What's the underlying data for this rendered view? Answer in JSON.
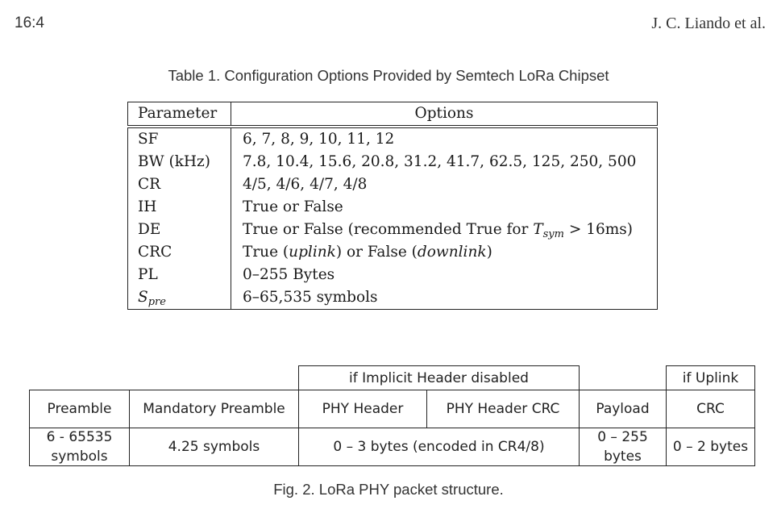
{
  "header": {
    "page_number": "16:4",
    "authors": "J. C. Liando et al."
  },
  "table": {
    "caption": "Table 1.  Configuration Options Provided by Semtech LoRa Chipset",
    "col_param": "Parameter",
    "col_options": "Options",
    "rows": [
      {
        "param": "SF",
        "options": "6, 7, 8, 9, 10, 11, 12"
      },
      {
        "param": "BW (kHz)",
        "options": "7.8, 10.4, 15.6, 20.8, 31.2, 41.7, 62.5, 125, 250, 500"
      },
      {
        "param": "CR",
        "options": "4/5, 4/6, 4/7, 4/8"
      },
      {
        "param": "IH",
        "options": "True or False"
      },
      {
        "param": "DE",
        "options_prefix": "True or False (recommended True for ",
        "options_var": "T",
        "options_sub": "sym",
        "options_suffix": " > 16ms)"
      },
      {
        "param": "CRC",
        "options_a": "True (",
        "options_a_em": "uplink",
        "options_b": ") or False (",
        "options_b_em": "downlink",
        "options_c": ")"
      },
      {
        "param": "PL",
        "options": "0–255 Bytes"
      },
      {
        "param_var": "S",
        "param_sub": "pre",
        "options": "6–65,535 symbols"
      }
    ]
  },
  "figure": {
    "caption": "Fig. 2.  LoRa PHY packet structure.",
    "group_implicit": "if Implicit Header disabled",
    "group_uplink": "if Uplink",
    "fields": {
      "preamble": "Preamble",
      "mandatory_preamble": "Mandatory Preamble",
      "phy_header": "PHY Header",
      "phy_header_crc": "PHY Header CRC",
      "payload": "Payload",
      "crc": "CRC"
    },
    "sizes": {
      "preamble_l1": "6 - 65535",
      "preamble_l2": "symbols",
      "mandatory_preamble": "4.25 symbols",
      "header": "0 – 3 bytes (encoded in CR4/8)",
      "payload_l1": "0 – 255",
      "payload_l2": "bytes",
      "crc": "0 – 2 bytes"
    }
  }
}
